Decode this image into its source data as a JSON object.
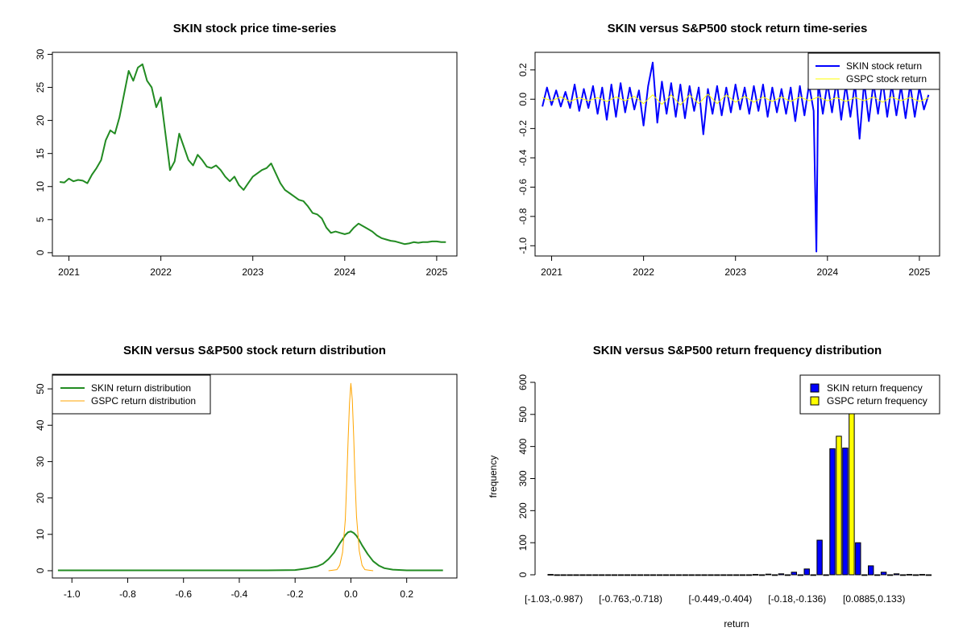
{
  "figure": {
    "colors": {
      "green": "#228B22",
      "blue": "#0000FF",
      "yellow": "#FFFF00",
      "orange": "#FFA500",
      "black": "#000000"
    }
  },
  "chart_data": [
    {
      "id": "price",
      "type": "line",
      "title": "SKIN stock price time-series",
      "xlabel": "",
      "ylabel": "",
      "xlim": [
        2020.82,
        2025.22
      ],
      "ylim": [
        -0.5,
        30.3
      ],
      "xticks": [
        2021,
        2022,
        2023,
        2024,
        2025
      ],
      "xtick_labels": [
        "2021",
        "2022",
        "2023",
        "2024",
        "2025"
      ],
      "yticks": [
        0,
        5,
        10,
        15,
        20,
        25,
        30
      ],
      "ytick_labels": [
        "0",
        "5",
        "10",
        "15",
        "20",
        "25",
        "30"
      ],
      "series": [
        {
          "name": "SKIN",
          "color": "#228B22",
          "x": [
            2020.9,
            2020.95,
            2021.0,
            2021.05,
            2021.1,
            2021.15,
            2021.2,
            2021.25,
            2021.3,
            2021.35,
            2021.4,
            2021.45,
            2021.5,
            2021.55,
            2021.6,
            2021.65,
            2021.7,
            2021.75,
            2021.8,
            2021.85,
            2021.9,
            2021.95,
            2022.0,
            2022.05,
            2022.1,
            2022.15,
            2022.2,
            2022.25,
            2022.3,
            2022.35,
            2022.4,
            2022.45,
            2022.5,
            2022.55,
            2022.6,
            2022.65,
            2022.7,
            2022.75,
            2022.8,
            2022.85,
            2022.9,
            2022.95,
            2023.0,
            2023.05,
            2023.1,
            2023.15,
            2023.2,
            2023.25,
            2023.3,
            2023.35,
            2023.4,
            2023.45,
            2023.5,
            2023.55,
            2023.6,
            2023.65,
            2023.7,
            2023.75,
            2023.8,
            2023.85,
            2023.9,
            2023.95,
            2024.0,
            2024.05,
            2024.1,
            2024.15,
            2024.2,
            2024.25,
            2024.3,
            2024.35,
            2024.4,
            2024.45,
            2024.5,
            2024.55,
            2024.6,
            2024.65,
            2024.7,
            2024.75,
            2024.8,
            2024.85,
            2024.9,
            2024.95,
            2025.0,
            2025.05,
            2025.1
          ],
          "values": [
            10.7,
            10.6,
            11.2,
            10.8,
            11.0,
            10.9,
            10.5,
            11.8,
            12.8,
            14.0,
            17.0,
            18.5,
            18.0,
            20.5,
            24.0,
            27.5,
            26.0,
            28.0,
            28.5,
            26.0,
            25.0,
            22.0,
            23.5,
            18.0,
            12.5,
            13.8,
            18.0,
            16.0,
            14.0,
            13.2,
            14.8,
            14.0,
            13.0,
            12.8,
            13.2,
            12.5,
            11.5,
            10.8,
            11.5,
            10.2,
            9.5,
            10.5,
            11.5,
            12.0,
            12.5,
            12.8,
            13.5,
            12.0,
            10.5,
            9.5,
            9.0,
            8.5,
            8.0,
            7.8,
            7.0,
            6.0,
            5.8,
            5.2,
            3.8,
            3.0,
            3.2,
            3.0,
            2.8,
            3.0,
            3.8,
            4.4,
            4.0,
            3.6,
            3.2,
            2.6,
            2.2,
            2.0,
            1.8,
            1.7,
            1.5,
            1.3,
            1.4,
            1.6,
            1.5,
            1.6,
            1.6,
            1.7,
            1.7,
            1.6,
            1.6
          ]
        }
      ]
    },
    {
      "id": "returns",
      "type": "line",
      "title": "SKIN versus S&P500 stock return time-series",
      "xlabel": "",
      "ylabel": "",
      "xlim": [
        2020.82,
        2025.22
      ],
      "ylim": [
        -1.07,
        0.32
      ],
      "xticks": [
        2021,
        2022,
        2023,
        2024,
        2025
      ],
      "xtick_labels": [
        "2021",
        "2022",
        "2023",
        "2024",
        "2025"
      ],
      "yticks": [
        -1.0,
        -0.8,
        -0.6,
        -0.4,
        -0.2,
        0.0,
        0.2
      ],
      "ytick_labels": [
        "-1.0",
        "-0.8",
        "-0.6",
        "-0.4",
        "-0.2",
        "0.0",
        "0.2"
      ],
      "legend": [
        {
          "label": "SKIN stock return",
          "color": "#0000FF"
        },
        {
          "label": "GSPC stock return",
          "color": "#FFFF00"
        }
      ],
      "legend_position": "top-right",
      "series": [
        {
          "name": "SKIN stock return",
          "color": "#0000FF",
          "x": [
            2020.9,
            2020.95,
            2021.0,
            2021.05,
            2021.1,
            2021.15,
            2021.2,
            2021.25,
            2021.3,
            2021.35,
            2021.4,
            2021.45,
            2021.5,
            2021.55,
            2021.6,
            2021.65,
            2021.7,
            2021.75,
            2021.8,
            2021.85,
            2021.9,
            2021.95,
            2022.0,
            2022.05,
            2022.1,
            2022.15,
            2022.2,
            2022.25,
            2022.3,
            2022.35,
            2022.4,
            2022.45,
            2022.5,
            2022.55,
            2022.6,
            2022.65,
            2022.7,
            2022.75,
            2022.8,
            2022.85,
            2022.9,
            2022.95,
            2023.0,
            2023.05,
            2023.1,
            2023.15,
            2023.2,
            2023.25,
            2023.3,
            2023.35,
            2023.4,
            2023.45,
            2023.5,
            2023.55,
            2023.6,
            2023.65,
            2023.7,
            2023.75,
            2023.8,
            2023.85,
            2023.88,
            2023.9,
            2023.95,
            2024.0,
            2024.05,
            2024.1,
            2024.15,
            2024.2,
            2024.25,
            2024.3,
            2024.35,
            2024.4,
            2024.45,
            2024.5,
            2024.55,
            2024.6,
            2024.65,
            2024.7,
            2024.75,
            2024.8,
            2024.85,
            2024.9,
            2024.95,
            2025.0,
            2025.05,
            2025.1
          ],
          "values": [
            -0.05,
            0.08,
            -0.04,
            0.06,
            -0.05,
            0.05,
            -0.06,
            0.1,
            -0.08,
            0.07,
            -0.06,
            0.09,
            -0.1,
            0.08,
            -0.14,
            0.1,
            -0.12,
            0.11,
            -0.09,
            0.08,
            -0.07,
            0.06,
            -0.18,
            0.09,
            0.25,
            -0.16,
            0.12,
            -0.1,
            0.11,
            -0.12,
            0.1,
            -0.13,
            0.09,
            -0.08,
            0.08,
            -0.24,
            0.07,
            -0.1,
            0.09,
            -0.11,
            0.08,
            -0.09,
            0.1,
            -0.07,
            0.08,
            -0.1,
            0.09,
            -0.08,
            0.1,
            -0.12,
            0.08,
            -0.09,
            0.07,
            -0.1,
            0.08,
            -0.15,
            0.09,
            -0.11,
            0.1,
            -0.08,
            -1.04,
            0.12,
            -0.1,
            0.11,
            -0.09,
            0.13,
            -0.14,
            0.1,
            -0.12,
            0.11,
            -0.27,
            0.12,
            -0.15,
            0.11,
            -0.1,
            0.13,
            -0.12,
            0.1,
            -0.11,
            0.09,
            -0.13,
            0.1,
            -0.12,
            0.08,
            -0.07,
            0.03
          ]
        },
        {
          "name": "GSPC stock return",
          "color": "#FFFF00",
          "x": [
            2020.9,
            2021.0,
            2021.1,
            2021.2,
            2021.3,
            2021.4,
            2021.5,
            2021.6,
            2021.7,
            2021.8,
            2021.9,
            2022.0,
            2022.1,
            2022.2,
            2022.3,
            2022.4,
            2022.5,
            2022.6,
            2022.7,
            2022.8,
            2022.9,
            2023.0,
            2023.1,
            2023.2,
            2023.3,
            2023.4,
            2023.5,
            2023.6,
            2023.7,
            2023.8,
            2023.9,
            2024.0,
            2024.1,
            2024.2,
            2024.3,
            2024.4,
            2024.5,
            2024.6,
            2024.7,
            2024.8,
            2024.9,
            2025.0,
            2025.1
          ],
          "values": [
            0.01,
            -0.01,
            0.015,
            -0.015,
            0.01,
            -0.01,
            0.01,
            -0.015,
            0.015,
            -0.01,
            0.02,
            -0.03,
            0.03,
            -0.035,
            0.03,
            -0.04,
            0.03,
            -0.03,
            0.035,
            -0.03,
            0.03,
            -0.02,
            0.02,
            -0.02,
            0.015,
            -0.015,
            0.015,
            -0.015,
            0.015,
            -0.01,
            0.015,
            -0.01,
            0.01,
            -0.015,
            0.012,
            -0.01,
            0.015,
            -0.02,
            0.015,
            -0.01,
            0.012,
            -0.015,
            0.01
          ]
        }
      ]
    },
    {
      "id": "density",
      "type": "line",
      "title": "SKIN versus S&P500 stock return distribution",
      "xlabel": "",
      "ylabel": "",
      "xlim": [
        -1.07,
        0.38
      ],
      "ylim": [
        -2.0,
        54.0
      ],
      "xticks": [
        -1.0,
        -0.8,
        -0.6,
        -0.4,
        -0.2,
        0.0,
        0.2
      ],
      "xtick_labels": [
        "-1.0",
        "-0.8",
        "-0.6",
        "-0.4",
        "-0.2",
        "0.0",
        "0.2"
      ],
      "yticks": [
        0,
        10,
        20,
        30,
        40,
        50
      ],
      "ytick_labels": [
        "0",
        "10",
        "20",
        "30",
        "40",
        "50"
      ],
      "legend": [
        {
          "label": "SKIN return distribution",
          "color": "#228B22"
        },
        {
          "label": "GSPC return distribution",
          "color": "#FFA500"
        }
      ],
      "legend_position": "top-left",
      "series": [
        {
          "name": "SKIN return distribution",
          "color": "#228B22",
          "x": [
            -1.05,
            -0.9,
            -0.7,
            -0.5,
            -0.3,
            -0.2,
            -0.16,
            -0.12,
            -0.1,
            -0.08,
            -0.06,
            -0.04,
            -0.03,
            -0.02,
            -0.01,
            0.0,
            0.01,
            0.02,
            0.03,
            0.04,
            0.06,
            0.08,
            0.1,
            0.12,
            0.15,
            0.2,
            0.25,
            0.33
          ],
          "values": [
            0.1,
            0.1,
            0.1,
            0.1,
            0.1,
            0.2,
            0.6,
            1.2,
            1.9,
            3.2,
            5.0,
            7.5,
            8.6,
            9.8,
            10.6,
            10.8,
            10.4,
            9.6,
            8.4,
            7.0,
            4.6,
            2.6,
            1.4,
            0.7,
            0.3,
            0.1,
            0.1,
            0.1
          ]
        },
        {
          "name": "GSPC return distribution",
          "color": "#FFA500",
          "x": [
            -0.08,
            -0.05,
            -0.04,
            -0.03,
            -0.02,
            -0.015,
            -0.01,
            -0.005,
            0.0,
            0.005,
            0.01,
            0.015,
            0.02,
            0.03,
            0.04,
            0.05,
            0.08
          ],
          "values": [
            0.0,
            0.3,
            1.5,
            5.0,
            14.0,
            24.0,
            36.0,
            46.0,
            51.5,
            47.0,
            37.0,
            25.0,
            15.0,
            5.5,
            1.5,
            0.3,
            0.0
          ]
        }
      ]
    },
    {
      "id": "histogram",
      "type": "bar",
      "title": "SKIN versus S&P500 return frequency distribution",
      "xlabel": "return",
      "ylabel": "frequency",
      "ylim": [
        -10,
        625
      ],
      "yticks": [
        0,
        100,
        200,
        300,
        400,
        500,
        600
      ],
      "ytick_labels": [
        "0",
        "100",
        "200",
        "300",
        "400",
        "500",
        "600"
      ],
      "categories": [
        "[-1.03,-0.987)",
        "[-0.987,-0.942)",
        "[-0.942,-0.897)",
        "[-0.897,-0.852)",
        "[-0.852,-0.808)",
        "[-0.808,-0.763)",
        "[-0.763,-0.718)",
        "[-0.718,-0.673)",
        "[-0.673,-0.628)",
        "[-0.628,-0.583)",
        "[-0.583,-0.539)",
        "[-0.539,-0.494)",
        "[-0.494,-0.449)",
        "[-0.449,-0.404)",
        "[-0.404,-0.359)",
        "[-0.359,-0.315)",
        "[-0.315,-0.27)",
        "[-0.27,-0.225)",
        "[-0.225,-0.18)",
        "[-0.18,-0.136)",
        "[-0.136,-0.091)",
        "[-0.091,-0.0461)",
        "[-0.0461,-0.00126)",
        "[-0.00126,0.0435)",
        "[0.0435,0.0885)",
        "[0.0885,0.133)",
        "[0.133,0.178)",
        "[0.178,0.223)",
        "[0.223,0.268)",
        "[0.268,0.313)"
      ],
      "shown_category_labels": [
        "[-1.03,-0.987)",
        "[-0.763,-0.718)",
        "[-0.449,-0.404)",
        "[-0.18,-0.136)",
        "[0.0885,0.133)"
      ],
      "legend": [
        {
          "label": "SKIN return frequency",
          "color": "#0000FF"
        },
        {
          "label": "GSPC return frequency",
          "color": "#FFFF00"
        }
      ],
      "legend_position": "top-right",
      "series": [
        {
          "name": "SKIN return frequency",
          "color": "#0000FF",
          "values": [
            1,
            0,
            0,
            0,
            0,
            0,
            0,
            0,
            0,
            0,
            0,
            0,
            0,
            0,
            0,
            0,
            1,
            2,
            3,
            8,
            18,
            108,
            393,
            395,
            100,
            28,
            8,
            3,
            1,
            1
          ]
        },
        {
          "name": "GSPC return frequency",
          "color": "#FFFF00",
          "values": [
            0,
            0,
            0,
            0,
            0,
            0,
            0,
            0,
            0,
            0,
            0,
            0,
            0,
            0,
            0,
            0,
            0,
            0,
            0,
            0,
            0,
            0,
            432,
            615,
            0,
            0,
            0,
            0,
            0,
            0
          ]
        }
      ]
    }
  ]
}
